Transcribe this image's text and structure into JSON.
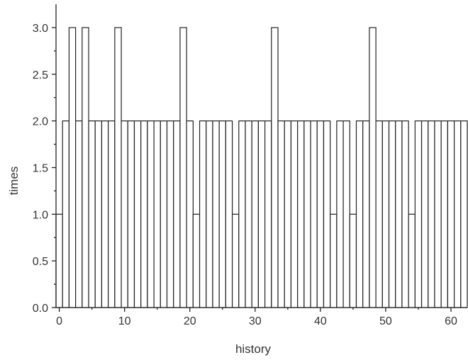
{
  "chart_data": {
    "type": "bar",
    "title": "",
    "xlabel": "history",
    "ylabel": "times",
    "xlim": [
      -0.5,
      62.5
    ],
    "ylim": [
      0,
      3.25
    ],
    "grid": false,
    "legend": "none",
    "xticks": [
      0,
      10,
      20,
      30,
      40,
      50,
      60
    ],
    "xtick_labels": [
      "0",
      "10",
      "20",
      "30",
      "40",
      "50",
      "60"
    ],
    "yticks": [
      0.0,
      0.5,
      1.0,
      1.5,
      2.0,
      2.5,
      3.0
    ],
    "ytick_labels": [
      "0.0",
      "0.5",
      "1.0",
      "1.5",
      "2.0",
      "2.5",
      "3.0"
    ],
    "x": [
      0,
      1,
      2,
      3,
      4,
      5,
      6,
      7,
      8,
      9,
      10,
      11,
      12,
      13,
      14,
      15,
      16,
      17,
      18,
      19,
      20,
      21,
      22,
      23,
      24,
      25,
      26,
      27,
      28,
      29,
      30,
      31,
      32,
      33,
      34,
      35,
      36,
      37,
      38,
      39,
      40,
      41,
      42,
      43,
      44,
      45,
      46,
      47,
      48,
      49,
      50,
      51,
      52,
      53,
      54,
      55,
      56,
      57,
      58,
      59,
      60,
      61,
      62
    ],
    "values": [
      1,
      2,
      3,
      2,
      3,
      2,
      2,
      2,
      2,
      3,
      2,
      2,
      2,
      2,
      2,
      2,
      2,
      2,
      2,
      3,
      2,
      1,
      2,
      2,
      2,
      2,
      2,
      1,
      2,
      2,
      2,
      2,
      2,
      3,
      2,
      2,
      2,
      2,
      2,
      2,
      2,
      2,
      1,
      2,
      2,
      1,
      2,
      2,
      3,
      2,
      2,
      2,
      2,
      2,
      1,
      2,
      2,
      2,
      2,
      2,
      2,
      2,
      2
    ]
  },
  "colors": {
    "bar_fill": "#ffffff",
    "bar_stroke": "#222222",
    "axis": "#222222",
    "text": "#333333"
  }
}
